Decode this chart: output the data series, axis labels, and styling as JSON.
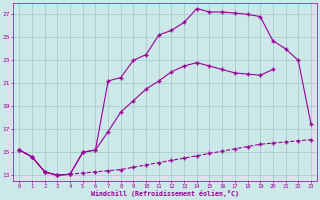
{
  "xlabel": "Windchill (Refroidissement éolien,°C)",
  "xlim": [
    -0.5,
    23.5
  ],
  "ylim": [
    12.5,
    28.0
  ],
  "yticks": [
    13,
    15,
    17,
    19,
    21,
    23,
    25,
    27
  ],
  "xticks": [
    0,
    1,
    2,
    3,
    4,
    5,
    6,
    7,
    8,
    9,
    10,
    11,
    12,
    13,
    14,
    15,
    16,
    17,
    18,
    19,
    20,
    21,
    22,
    23
  ],
  "bg_color": "#cce8e8",
  "grid_color": "#aacccc",
  "line_color": "#990099",
  "curve_bottom_x": [
    0,
    1,
    2,
    3,
    4,
    5,
    6,
    7,
    8,
    9,
    10,
    11,
    12,
    13,
    14,
    15,
    16,
    17,
    18,
    19,
    20,
    21,
    22,
    23
  ],
  "curve_bottom_y": [
    15.2,
    14.6,
    13.3,
    13.0,
    13.1,
    13.2,
    13.3,
    13.4,
    13.5,
    13.7,
    13.9,
    14.1,
    14.3,
    14.5,
    14.7,
    14.9,
    15.1,
    15.3,
    15.5,
    15.7,
    15.8,
    15.9,
    16.0,
    16.1
  ],
  "curve_mid_x": [
    0,
    1,
    2,
    3,
    4,
    5,
    6,
    7,
    8,
    9,
    10,
    11,
    12,
    13,
    14,
    15,
    16,
    17,
    18,
    19,
    20
  ],
  "curve_mid_y": [
    15.2,
    14.6,
    13.3,
    13.0,
    13.1,
    15.0,
    15.2,
    16.8,
    18.5,
    19.5,
    20.5,
    21.2,
    22.0,
    22.5,
    22.8,
    22.5,
    22.2,
    21.9,
    21.8,
    21.7,
    22.2
  ],
  "curve_top_x": [
    0,
    1,
    2,
    3,
    4,
    5,
    6,
    7,
    8,
    9,
    10,
    11,
    12,
    13,
    14,
    15,
    16,
    17,
    18,
    19,
    20,
    21,
    22,
    23
  ],
  "curve_top_y": [
    15.2,
    14.6,
    13.3,
    13.0,
    13.1,
    15.0,
    15.2,
    21.2,
    21.5,
    23.0,
    23.5,
    25.2,
    25.6,
    26.3,
    27.5,
    27.2,
    27.2,
    27.1,
    27.0,
    26.8,
    24.7,
    24.0,
    23.0,
    17.5
  ]
}
